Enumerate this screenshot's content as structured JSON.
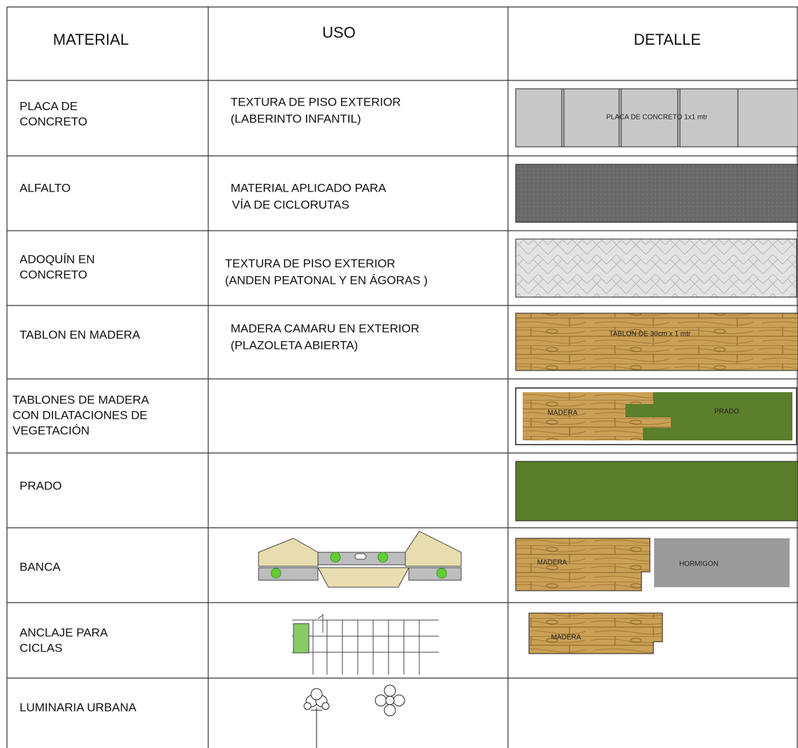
{
  "table": {
    "headers": [
      "MATERIAL",
      "USO",
      "DETALLE"
    ],
    "rows": [
      {
        "material": [
          "PLACA DE",
          "CONCRETO"
        ],
        "uso": [
          "TEXTURA DE PISO EXTERIOR",
          "(LABERINTO INFANTIL)"
        ],
        "detalle": [
          "PLACA DE CONCRETO  1x1 mtr"
        ]
      },
      {
        "material": [
          "ALFALTO"
        ],
        "uso": [
          "MATERIAL APLICADO PARA",
          "VÍA DE CICLORUTAS"
        ],
        "detalle": []
      },
      {
        "material": [
          "ADOQUÍN EN",
          "CONCRETO"
        ],
        "uso": [
          "TEXTURA DE PISO EXTERIOR",
          "(ANDEN PEATONAL Y EN ÁGORAS )"
        ],
        "detalle": []
      },
      {
        "material": [
          "TABLON EN MADERA"
        ],
        "uso": [
          "MADERA CAMARU EN EXTERIOR",
          "(PLAZOLETA ABIERTA)"
        ],
        "detalle": [
          "TABLON DE 30cm x 1 mtr"
        ]
      },
      {
        "material": [
          "TABLONES DE MADERA",
          "CON DILATACIONES DE",
          "VEGETACIÓN"
        ],
        "uso": [],
        "detalle": [
          "MADERA",
          "PRADO"
        ]
      },
      {
        "material": [
          "PRADO"
        ],
        "uso": [],
        "detalle": []
      },
      {
        "material": [
          "BANCA"
        ],
        "uso": [],
        "detalle": [
          "MADERA",
          "HORMIGON"
        ]
      },
      {
        "material": [
          "ANCLAJE PARA",
          "CICLAS"
        ],
        "uso": [],
        "detalle": [
          "MADERA"
        ]
      },
      {
        "material": [
          "LUMINARIA URBANA"
        ],
        "uso": [],
        "detalle": []
      }
    ]
  }
}
